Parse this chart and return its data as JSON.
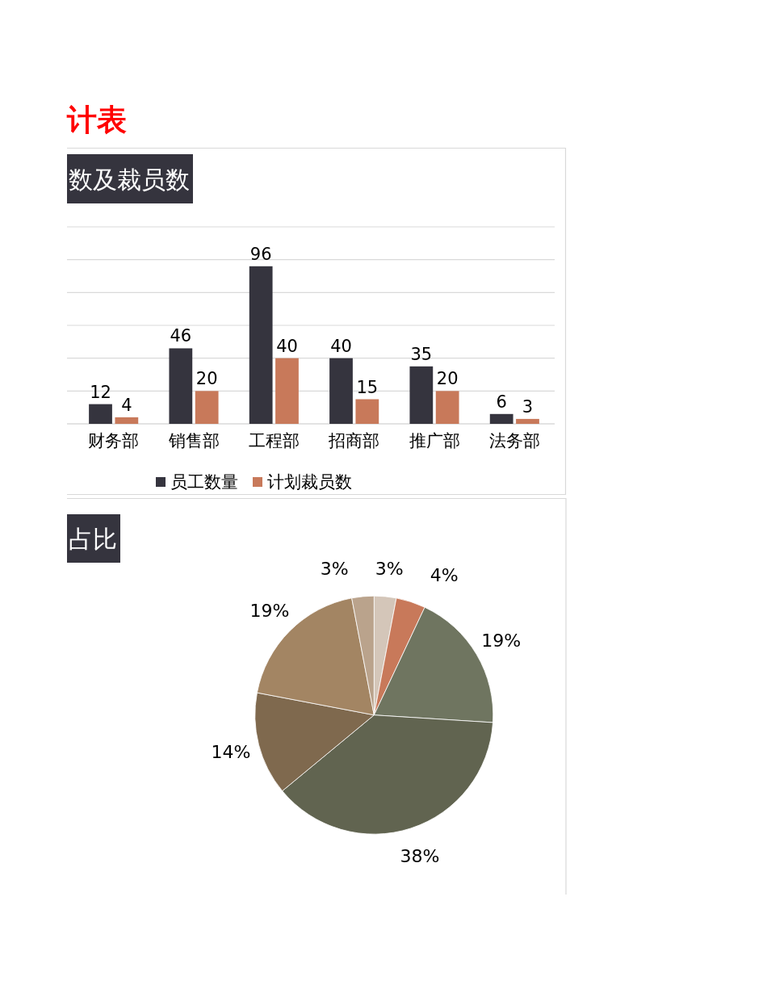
{
  "chart_data": [
    {
      "type": "bar",
      "title": "计表",
      "subtitle": "数及裁员数",
      "categories": [
        "财务部",
        "销售部",
        "工程部",
        "招商部",
        "推广部",
        "法务部"
      ],
      "series": [
        {
          "name": "员工数量",
          "color": "#35343e",
          "values": [
            12,
            46,
            96,
            40,
            35,
            6
          ]
        },
        {
          "name": "计划裁员数",
          "color": "#c8795a",
          "values": [
            4,
            20,
            40,
            15,
            20,
            3
          ]
        }
      ],
      "ylim": [
        0,
        120
      ],
      "yticks": [
        0,
        20,
        40,
        60,
        80,
        100,
        120
      ],
      "tick_labels": "x",
      "grid": "y",
      "legend": "bottom",
      "data_labels": true
    },
    {
      "type": "pie",
      "title": "占比",
      "categories": [
        null,
        null,
        null,
        null,
        null,
        null,
        null
      ],
      "values": [
        3,
        4,
        19,
        38,
        14,
        19,
        3
      ],
      "colors": [
        "#d4c6b9",
        "#c8795a",
        "#6f7560",
        "#616450",
        "#7f694e",
        "#a38563",
        "#baa38c"
      ],
      "value_labels": [
        "3%",
        "4%",
        "19%",
        "38%",
        "14%",
        "19%",
        "3%"
      ]
    }
  ]
}
